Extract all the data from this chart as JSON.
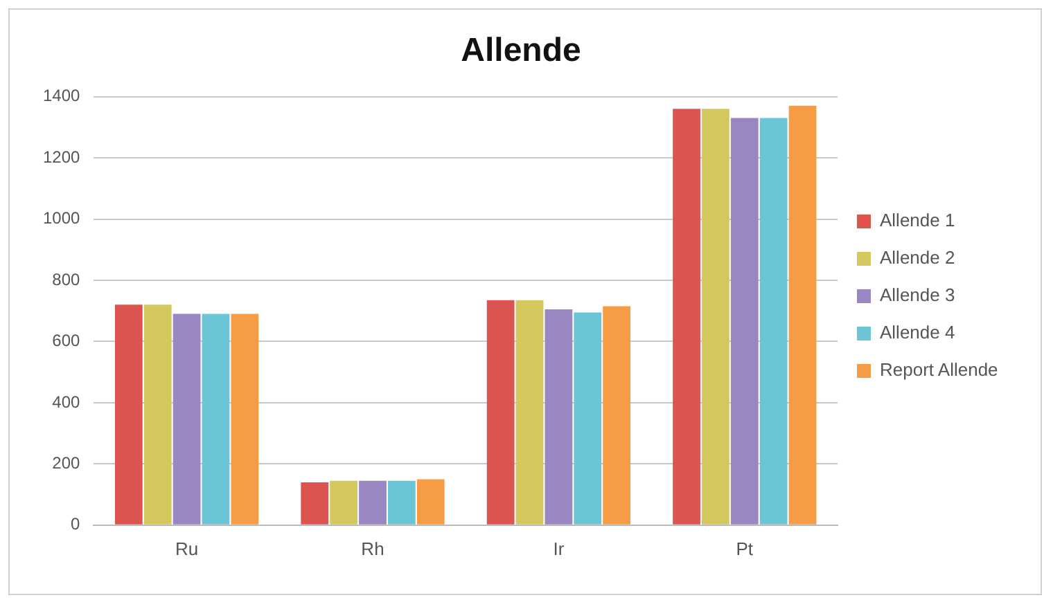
{
  "chart_data": {
    "type": "bar",
    "title": "Allende",
    "categories": [
      "Ru",
      "Rh",
      "Ir",
      "Pt"
    ],
    "series": [
      {
        "name": "Allende 1",
        "color": "#dc5450",
        "values": [
          720,
          140,
          735,
          1360
        ]
      },
      {
        "name": "Allende 2",
        "color": "#d4c85c",
        "values": [
          720,
          145,
          735,
          1360
        ]
      },
      {
        "name": "Allende 3",
        "color": "#9a86c0",
        "values": [
          690,
          145,
          705,
          1330
        ]
      },
      {
        "name": "Allende 4",
        "color": "#6cc5d6",
        "values": [
          690,
          145,
          695,
          1330
        ]
      },
      {
        "name": "Report Allende",
        "color": "#f59c45",
        "values": [
          690,
          150,
          715,
          1370
        ]
      }
    ],
    "ylim": [
      0,
      1400
    ],
    "yticks": [
      0,
      200,
      400,
      600,
      800,
      1000,
      1200,
      1400
    ],
    "grid": "y",
    "legend": "right"
  }
}
